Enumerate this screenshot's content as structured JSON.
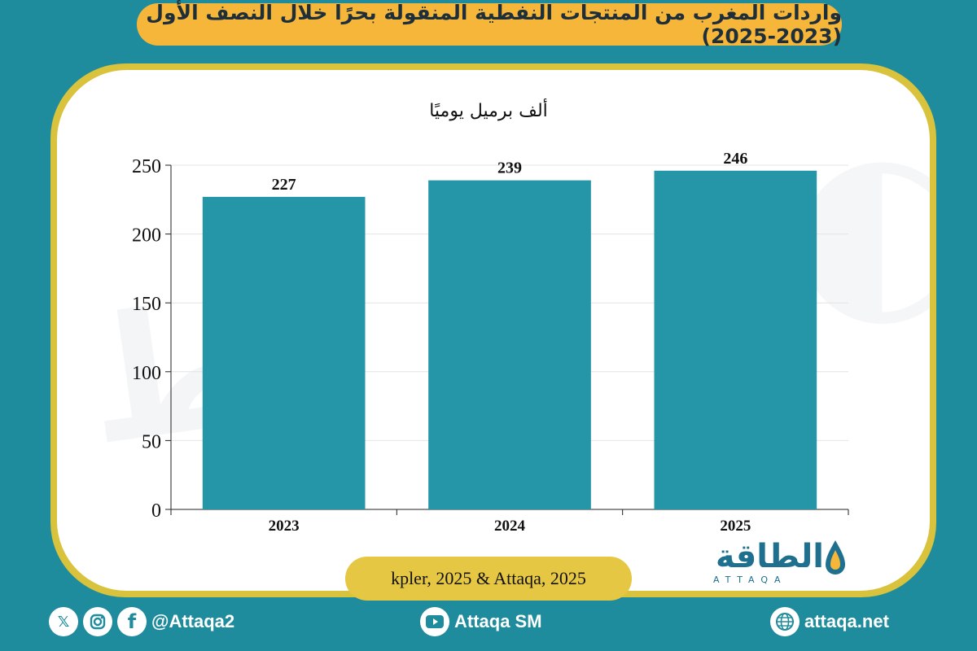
{
  "header": {
    "title": "واردات المغرب من المنتجات النفطية المنقولة بحرًا خلال النصف الأول (2023-2025)"
  },
  "chart_data": {
    "type": "bar",
    "title": "واردات المغرب من المنتجات النفطية المنقولة بحرًا خلال النصف الأول (2023-2025)",
    "ylabel": "ألف برميل يوميًا",
    "xlabel": "",
    "categories": [
      "2023",
      "2024",
      "2025"
    ],
    "values": [
      227,
      239,
      246
    ],
    "data_labels": [
      "227",
      "239",
      "246"
    ],
    "ylim": [
      0,
      250
    ],
    "yticks": [
      0,
      50,
      100,
      150,
      200,
      250
    ],
    "grid": true,
    "bar_color": "#2596a8"
  },
  "source": {
    "text": "kpler, 2025 & Attaqa, 2025"
  },
  "logo": {
    "arabic": "الطاقة",
    "english": "ATTAQA"
  },
  "footer": {
    "social_handle": "@Attaqa2",
    "youtube": "Attaqa SM",
    "website": "attaqa.net"
  },
  "colors": {
    "background": "#1e8c9c",
    "title_pill": "#f6b63a",
    "card_border": "#d9c23c",
    "bar": "#2596a8"
  }
}
